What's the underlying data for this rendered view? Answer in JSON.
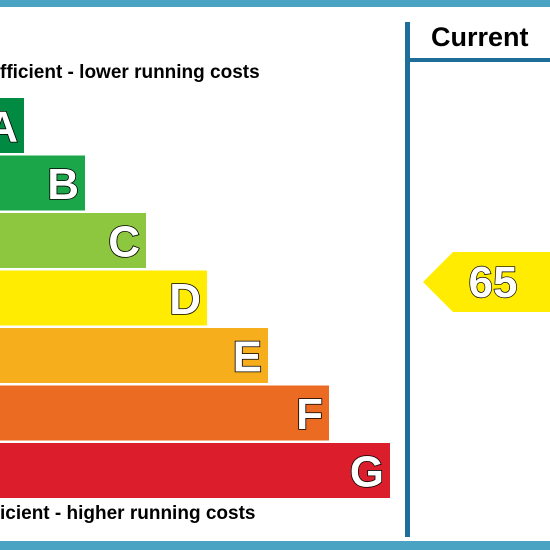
{
  "header": {
    "column_label": "Current"
  },
  "notes": {
    "top": "fficient - lower running costs",
    "bottom": "icient - higher running costs"
  },
  "chart_data": {
    "type": "bar",
    "orientation": "horizontal",
    "title": "",
    "categories": [
      "A",
      "B",
      "C",
      "D",
      "E",
      "F",
      "G"
    ],
    "values": [
      1,
      2,
      3,
      4,
      5,
      6,
      7
    ],
    "colors": [
      "#008a42",
      "#1ba64a",
      "#8dc63f",
      "#ffec00",
      "#f7ae1d",
      "#ec6b22",
      "#dc1d2b"
    ],
    "current": {
      "value": "65",
      "band": "D",
      "color": "#ffec00"
    }
  }
}
